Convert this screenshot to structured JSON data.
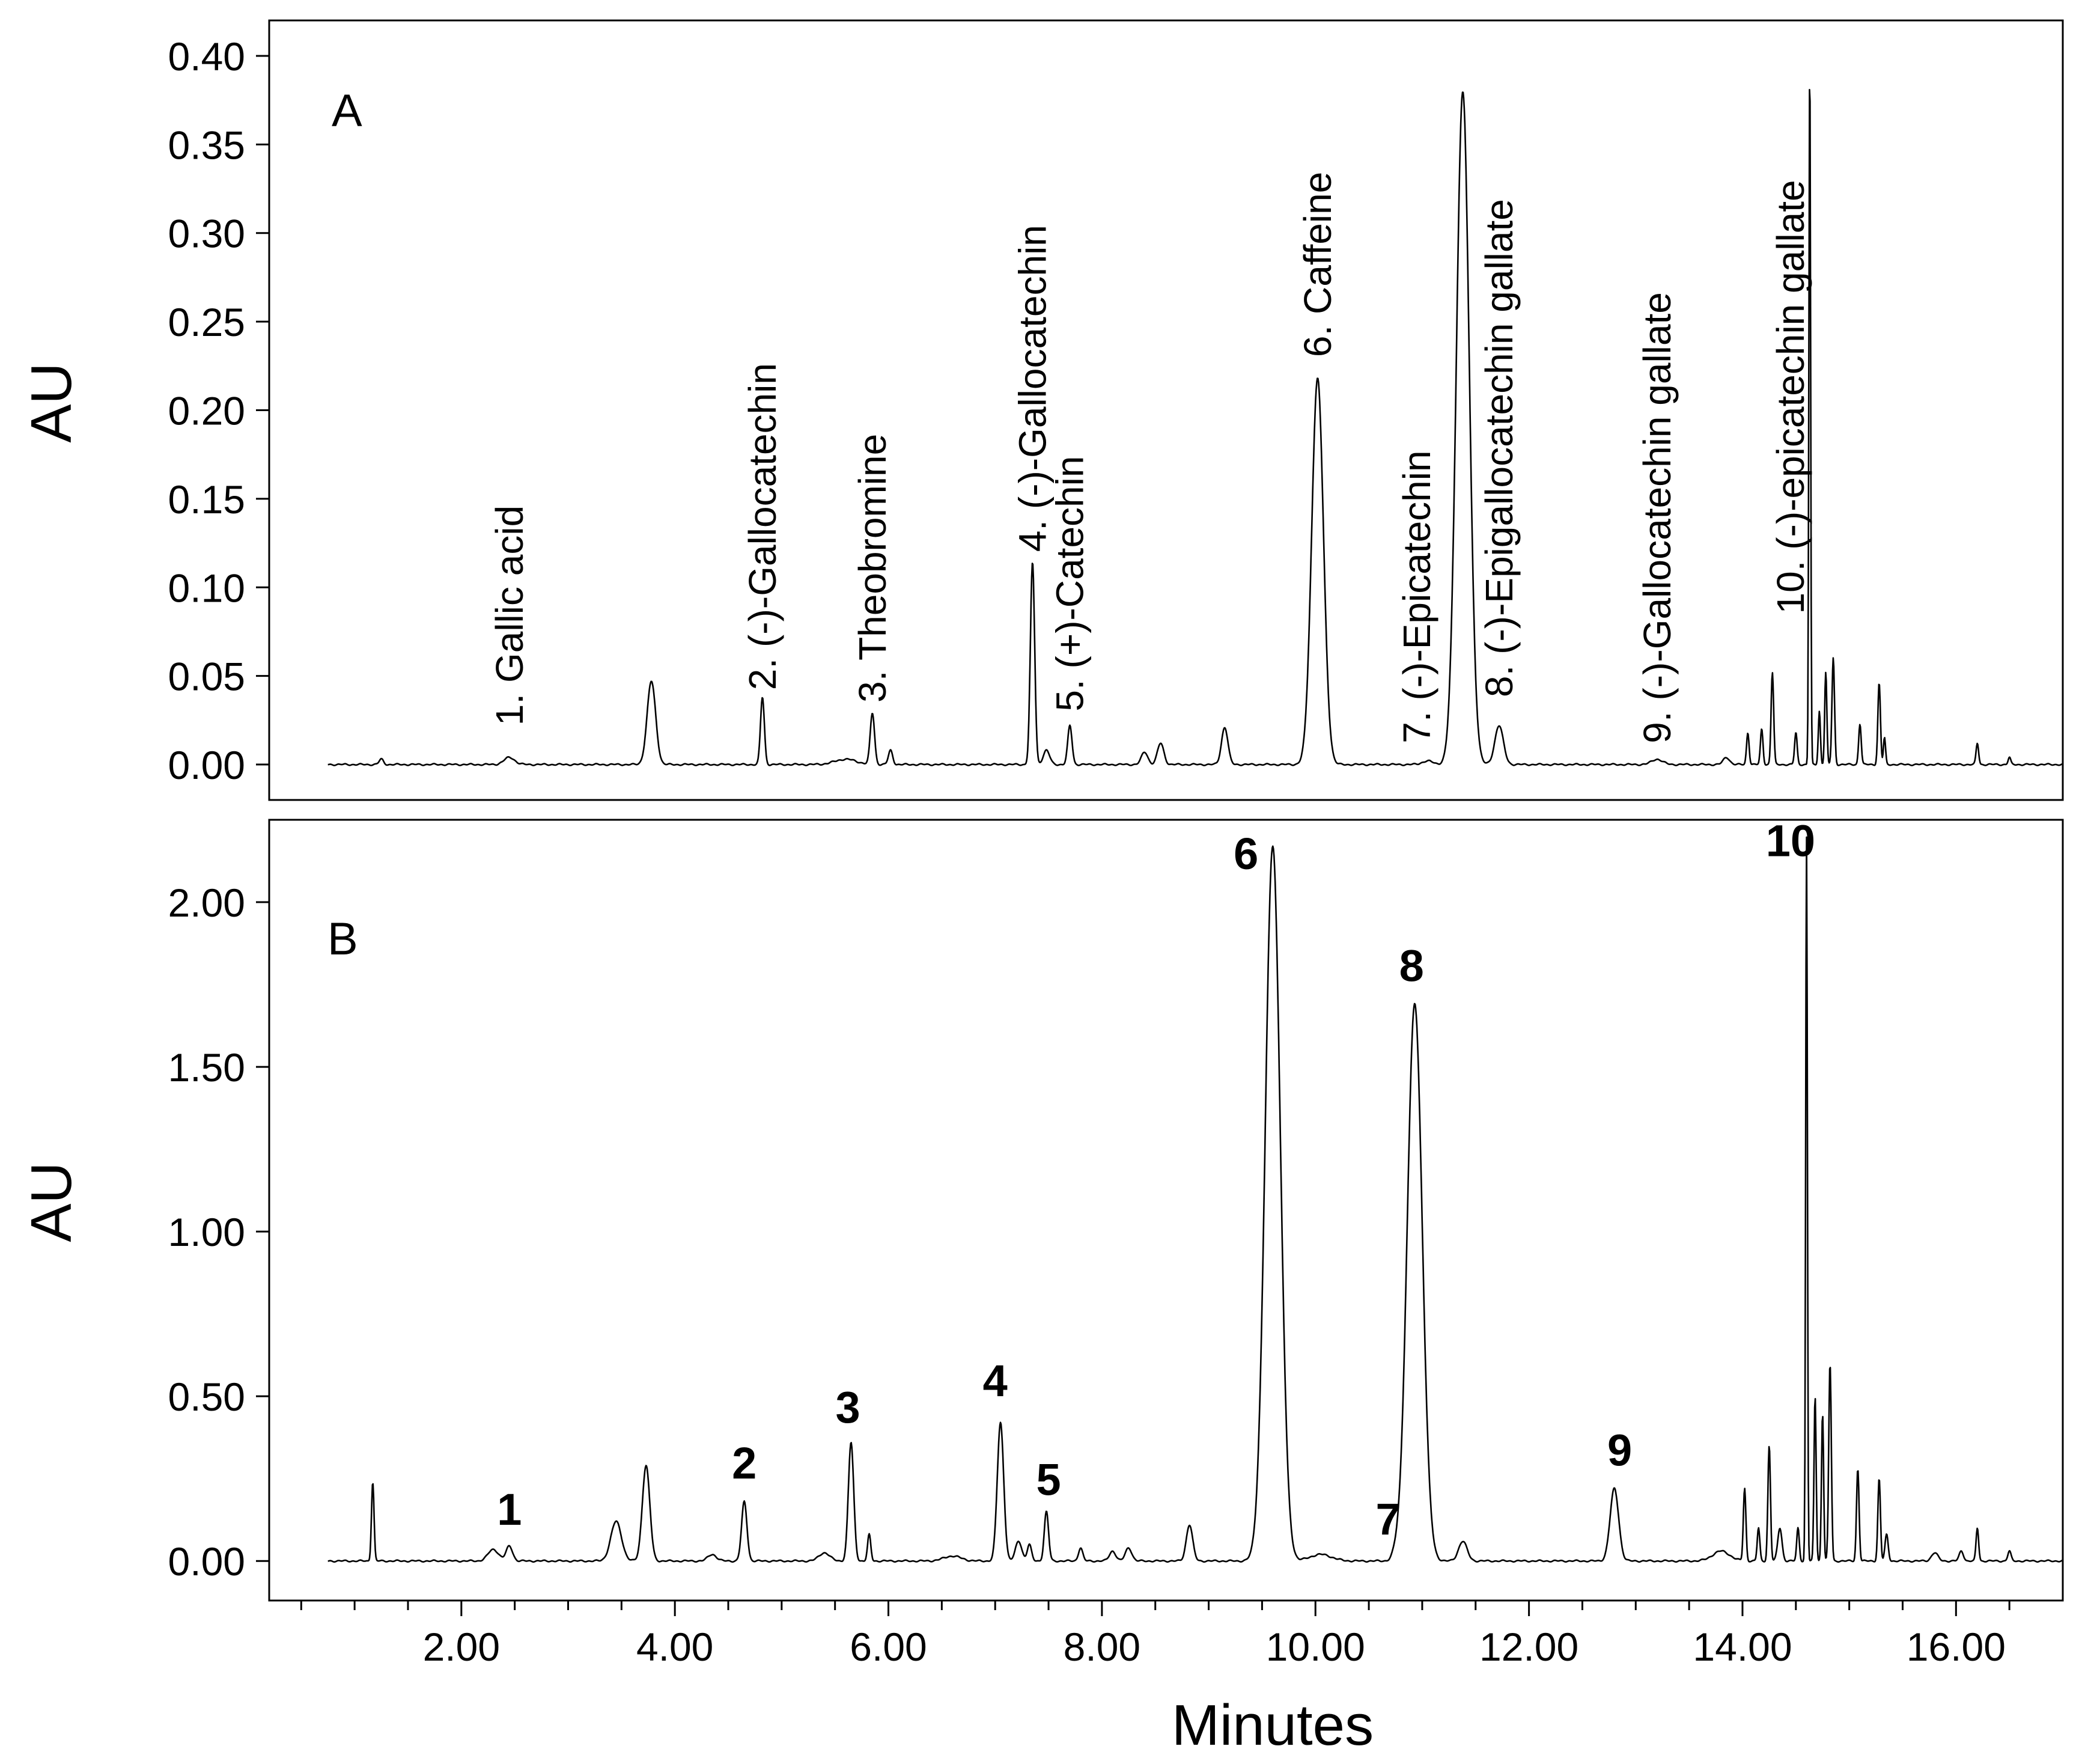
{
  "chart_data": [
    {
      "type": "line",
      "panel": "A",
      "xlabel": "",
      "ylabel": "AU",
      "xlim": [
        0.2,
        17.0
      ],
      "ylim": [
        -0.02,
        0.42
      ],
      "yticks": [
        "0.00",
        "0.05",
        "0.10",
        "0.15",
        "0.20",
        "0.25",
        "0.30",
        "0.35",
        "0.40"
      ],
      "ytick_values": [
        0.0,
        0.05,
        0.1,
        0.15,
        0.2,
        0.25,
        0.3,
        0.35,
        0.4
      ],
      "peaks": [
        {
          "rt": 1.25,
          "height": 0.003,
          "width": 0.02
        },
        {
          "rt": 2.45,
          "height": 0.004,
          "width": 0.05
        },
        {
          "rt": 3.78,
          "height": 0.047,
          "width": 0.04
        },
        {
          "rt": 4.82,
          "height": 0.038,
          "width": 0.018
        },
        {
          "rt": 5.6,
          "height": 0.003,
          "width": 0.1
        },
        {
          "rt": 5.85,
          "height": 0.029,
          "width": 0.02
        },
        {
          "rt": 6.02,
          "height": 0.008,
          "width": 0.02
        },
        {
          "rt": 7.35,
          "height": 0.114,
          "width": 0.02
        },
        {
          "rt": 7.48,
          "height": 0.008,
          "width": 0.03
        },
        {
          "rt": 7.7,
          "height": 0.022,
          "width": 0.02
        },
        {
          "rt": 8.4,
          "height": 0.007,
          "width": 0.03
        },
        {
          "rt": 8.55,
          "height": 0.012,
          "width": 0.03
        },
        {
          "rt": 9.15,
          "height": 0.021,
          "width": 0.03
        },
        {
          "rt": 10.02,
          "height": 0.218,
          "width": 0.055
        },
        {
          "rt": 11.05,
          "height": 0.002,
          "width": 0.05
        },
        {
          "rt": 11.38,
          "height": 0.38,
          "width": 0.06
        },
        {
          "rt": 11.72,
          "height": 0.022,
          "width": 0.04
        },
        {
          "rt": 13.2,
          "height": 0.003,
          "width": 0.05
        },
        {
          "rt": 13.85,
          "height": 0.004,
          "width": 0.03
        },
        {
          "rt": 14.05,
          "height": 0.018,
          "width": 0.012
        },
        {
          "rt": 14.18,
          "height": 0.02,
          "width": 0.012
        },
        {
          "rt": 14.28,
          "height": 0.052,
          "width": 0.012
        },
        {
          "rt": 14.5,
          "height": 0.018,
          "width": 0.012
        },
        {
          "rt": 14.63,
          "height": 0.4,
          "width": 0.008
        },
        {
          "rt": 14.72,
          "height": 0.03,
          "width": 0.01
        },
        {
          "rt": 14.78,
          "height": 0.052,
          "width": 0.01
        },
        {
          "rt": 14.85,
          "height": 0.06,
          "width": 0.012
        },
        {
          "rt": 15.1,
          "height": 0.023,
          "width": 0.012
        },
        {
          "rt": 15.28,
          "height": 0.046,
          "width": 0.012
        },
        {
          "rt": 15.33,
          "height": 0.015,
          "width": 0.01
        },
        {
          "rt": 16.2,
          "height": 0.012,
          "width": 0.012
        },
        {
          "rt": 16.5,
          "height": 0.004,
          "width": 0.012
        }
      ],
      "annotations": [
        {
          "text": "A",
          "kind": "panel"
        },
        {
          "text": "1. Gallic acid",
          "x": 2.45,
          "y": 0.022
        },
        {
          "text": "2. (-)-Gallocatechin",
          "x": 4.82,
          "y": 0.042
        },
        {
          "text": "3. Theobromine",
          "x": 5.85,
          "y": 0.035
        },
        {
          "text": "4. (-)-Gallocatechin",
          "x": 7.35,
          "y": 0.12
        },
        {
          "text": "5. (+)-Catechin",
          "x": 7.7,
          "y": 0.03
        },
        {
          "text": "6. Caffeine",
          "x": 10.02,
          "y": 0.23
        },
        {
          "text": "7. (-)-Epicatechin",
          "x": 10.95,
          "y": 0.012
        },
        {
          "text": "8. (-)-Epigallocatechin gallate",
          "x": 11.72,
          "y": 0.038
        },
        {
          "text": "9. (-)-Gallocatechin gallate",
          "x": 13.2,
          "y": 0.012
        },
        {
          "text": "10. (-)-epicatechin gallate",
          "x": 14.45,
          "y": 0.085
        }
      ]
    },
    {
      "type": "line",
      "panel": "B",
      "xlabel": "Minutes",
      "ylabel": "AU",
      "xlim": [
        0.2,
        17.0
      ],
      "ylim": [
        -0.12,
        2.25
      ],
      "yticks": [
        "0.00",
        "0.50",
        "1.00",
        "1.50",
        "2.00"
      ],
      "ytick_values": [
        0.0,
        0.5,
        1.0,
        1.5,
        2.0
      ],
      "xticks": [
        "2.00",
        "4.00",
        "6.00",
        "8.00",
        "10.00",
        "12.00",
        "14.00",
        "16.00"
      ],
      "xtick_values": [
        2,
        4,
        6,
        8,
        10,
        12,
        14,
        16
      ],
      "peaks": [
        {
          "rt": 1.17,
          "height": 0.24,
          "width": 0.012
        },
        {
          "rt": 2.3,
          "height": 0.035,
          "width": 0.05
        },
        {
          "rt": 2.45,
          "height": 0.045,
          "width": 0.03
        },
        {
          "rt": 3.45,
          "height": 0.12,
          "width": 0.05
        },
        {
          "rt": 3.73,
          "height": 0.29,
          "width": 0.035
        },
        {
          "rt": 4.35,
          "height": 0.02,
          "width": 0.04
        },
        {
          "rt": 4.65,
          "height": 0.18,
          "width": 0.025
        },
        {
          "rt": 5.4,
          "height": 0.025,
          "width": 0.05
        },
        {
          "rt": 5.65,
          "height": 0.36,
          "width": 0.025
        },
        {
          "rt": 5.82,
          "height": 0.08,
          "width": 0.015
        },
        {
          "rt": 6.6,
          "height": 0.015,
          "width": 0.08
        },
        {
          "rt": 7.05,
          "height": 0.42,
          "width": 0.03
        },
        {
          "rt": 7.22,
          "height": 0.06,
          "width": 0.03
        },
        {
          "rt": 7.32,
          "height": 0.05,
          "width": 0.02
        },
        {
          "rt": 7.48,
          "height": 0.15,
          "width": 0.02
        },
        {
          "rt": 7.8,
          "height": 0.04,
          "width": 0.02
        },
        {
          "rt": 8.1,
          "height": 0.03,
          "width": 0.03
        },
        {
          "rt": 8.25,
          "height": 0.04,
          "width": 0.03
        },
        {
          "rt": 8.82,
          "height": 0.11,
          "width": 0.03
        },
        {
          "rt": 9.6,
          "height": 2.17,
          "width": 0.07
        },
        {
          "rt": 10.05,
          "height": 0.02,
          "width": 0.1
        },
        {
          "rt": 10.75,
          "height": 0.015,
          "width": 0.03
        },
        {
          "rt": 10.93,
          "height": 1.69,
          "width": 0.07
        },
        {
          "rt": 11.38,
          "height": 0.06,
          "width": 0.04
        },
        {
          "rt": 12.8,
          "height": 0.22,
          "width": 0.04
        },
        {
          "rt": 13.8,
          "height": 0.03,
          "width": 0.08
        },
        {
          "rt": 14.02,
          "height": 0.22,
          "width": 0.012
        },
        {
          "rt": 14.15,
          "height": 0.1,
          "width": 0.012
        },
        {
          "rt": 14.25,
          "height": 0.35,
          "width": 0.012
        },
        {
          "rt": 14.35,
          "height": 0.1,
          "width": 0.02
        },
        {
          "rt": 14.52,
          "height": 0.1,
          "width": 0.012
        },
        {
          "rt": 14.6,
          "height": 2.2,
          "width": 0.008
        },
        {
          "rt": 14.68,
          "height": 0.5,
          "width": 0.01
        },
        {
          "rt": 14.75,
          "height": 0.45,
          "width": 0.01
        },
        {
          "rt": 14.82,
          "height": 0.6,
          "width": 0.012
        },
        {
          "rt": 15.08,
          "height": 0.28,
          "width": 0.012
        },
        {
          "rt": 15.28,
          "height": 0.25,
          "width": 0.012
        },
        {
          "rt": 15.35,
          "height": 0.08,
          "width": 0.015
        },
        {
          "rt": 15.8,
          "height": 0.025,
          "width": 0.03
        },
        {
          "rt": 16.05,
          "height": 0.03,
          "width": 0.02
        },
        {
          "rt": 16.2,
          "height": 0.1,
          "width": 0.012
        },
        {
          "rt": 16.5,
          "height": 0.03,
          "width": 0.015
        }
      ],
      "annotations": [
        {
          "text": "B",
          "kind": "panel"
        },
        {
          "text": "1",
          "x": 2.45,
          "y": 0.11
        },
        {
          "text": "2",
          "x": 4.65,
          "y": 0.25
        },
        {
          "text": "3",
          "x": 5.62,
          "y": 0.42
        },
        {
          "text": "4",
          "x": 7.0,
          "y": 0.5
        },
        {
          "text": "5",
          "x": 7.5,
          "y": 0.2
        },
        {
          "text": "6",
          "x": 9.35,
          "y": 2.1
        },
        {
          "text": "7",
          "x": 10.68,
          "y": 0.08
        },
        {
          "text": "8",
          "x": 10.9,
          "y": 1.76
        },
        {
          "text": "9",
          "x": 12.85,
          "y": 0.29
        },
        {
          "text": "10",
          "x": 14.45,
          "y": 2.14
        }
      ]
    }
  ]
}
